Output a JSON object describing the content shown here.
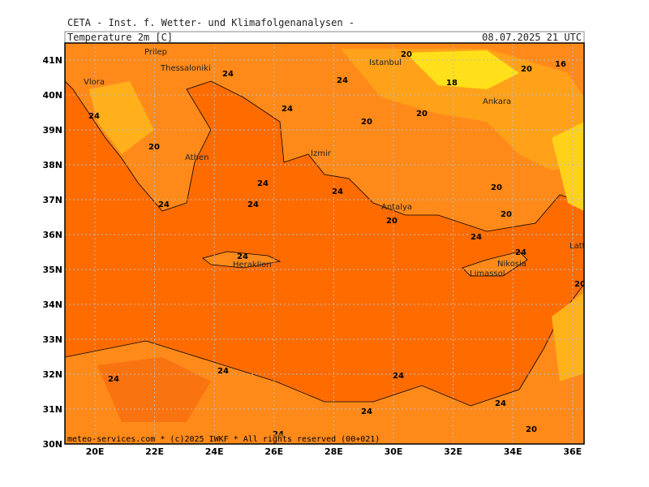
{
  "header": "CETA - Inst. f. Wetter- und Klimafolgenanalysen -",
  "title": "Temperature 2m [C]",
  "valid_time": "08.07.2025 21 UTC",
  "lat_labels": [
    {
      "value": 41,
      "label": "41N"
    },
    {
      "value": 40,
      "label": "40N"
    },
    {
      "value": 39,
      "label": "39N"
    },
    {
      "value": 38,
      "label": "38N"
    },
    {
      "value": 37,
      "label": "37N"
    },
    {
      "value": 36,
      "label": "36N"
    },
    {
      "value": 35,
      "label": "35N"
    },
    {
      "value": 34,
      "label": "34N"
    },
    {
      "value": 33,
      "label": "33N"
    },
    {
      "value": 32,
      "label": "32N"
    },
    {
      "value": 31,
      "label": "31N"
    },
    {
      "value": 30,
      "label": "30N"
    }
  ],
  "lon_labels": [
    {
      "value": 20,
      "label": "20E"
    },
    {
      "value": 22,
      "label": "22E"
    },
    {
      "value": 24,
      "label": "24E"
    },
    {
      "value": 26,
      "label": "26E"
    },
    {
      "value": 28,
      "label": "28E"
    },
    {
      "value": 30,
      "label": "30E"
    },
    {
      "value": 32,
      "label": "32E"
    },
    {
      "value": 34,
      "label": "34E"
    },
    {
      "value": 36,
      "label": "36E"
    }
  ],
  "cities": [
    "Prilep",
    "Thessaloniki",
    "Vlora",
    "Athen",
    "Izmir",
    "Istanbul",
    "Ankara",
    "Antalya",
    "Heraklion",
    "Limassol",
    "Nikosia",
    "Lattakia"
  ],
  "contour_labels": [
    24,
    24,
    20,
    18,
    16,
    20,
    20,
    20,
    24,
    20,
    24,
    24,
    24,
    24,
    24,
    20,
    24,
    20,
    20,
    24,
    24,
    20,
    24,
    24,
    24,
    24,
    24,
    20,
    24
  ],
  "footer": "meteo-services.com * (c)2025 IWKF * All rights reserved (00+021)"
}
